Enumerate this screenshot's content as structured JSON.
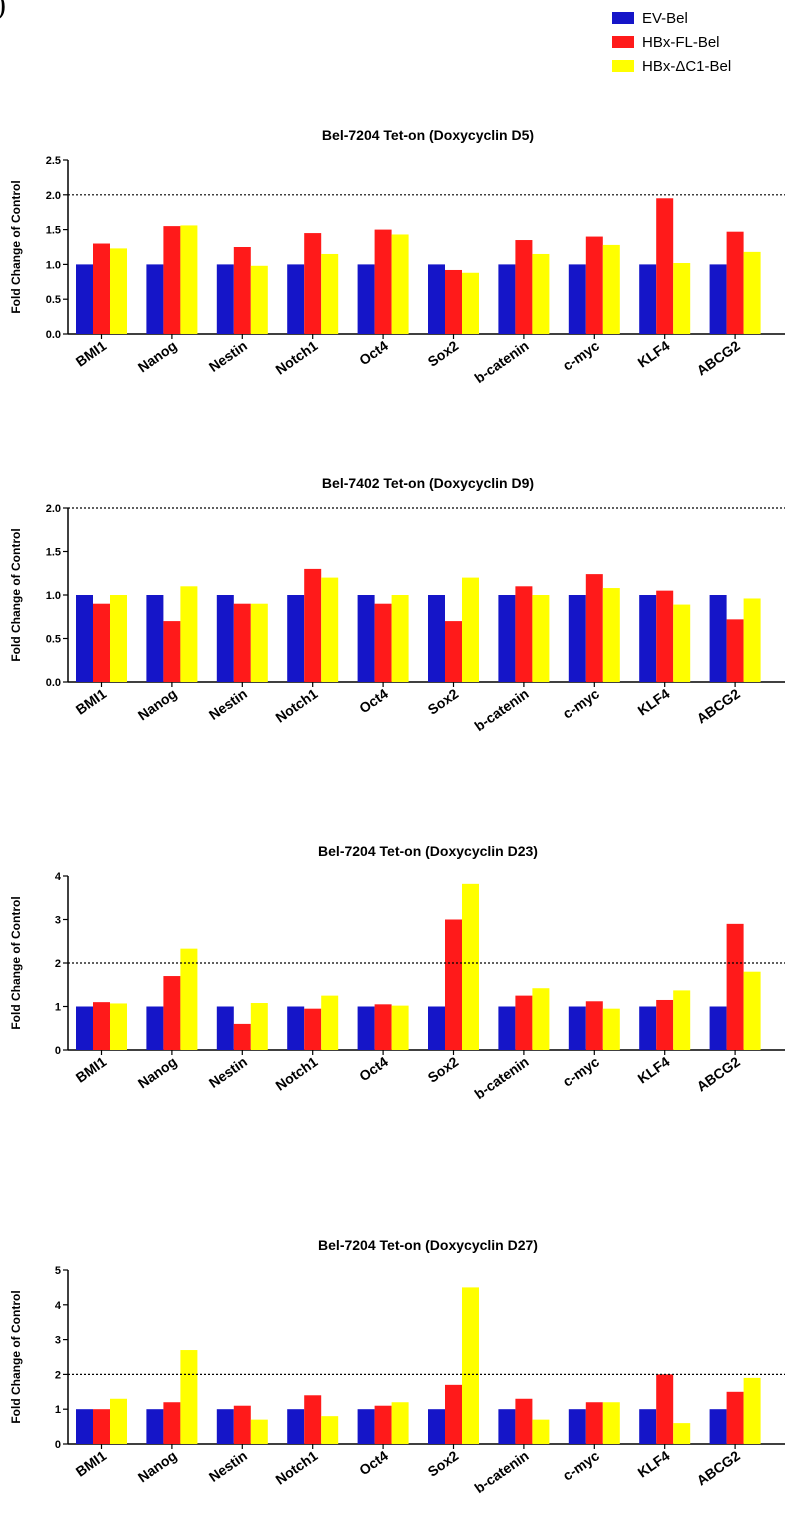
{
  "figure": {
    "corner_mark": ")"
  },
  "legend": {
    "items": [
      {
        "label": "EV-Bel",
        "color": "#1515c8"
      },
      {
        "label": "HBx-FL-Bel",
        "color": "#ff1a1a"
      },
      {
        "label": "HBx-ΔC1-Bel",
        "color": "#ffff00"
      }
    ]
  },
  "chart_data": [
    {
      "type": "bar",
      "title": "Bel-7204 Tet-on  (Doxycyclin D5)",
      "ylabel": "Fold Change of Control",
      "ylim": [
        0,
        2.5
      ],
      "yticks": [
        0.0,
        0.5,
        1.0,
        1.5,
        2.0,
        2.5
      ],
      "ytick_labels": [
        "0.0",
        "0.5",
        "1.0",
        "1.5",
        "2.0",
        "2.5"
      ],
      "reference_line": 2.0,
      "categories": [
        "BMI1",
        "Nanog",
        "Nestin",
        "Notch1",
        "Oct4",
        "Sox2",
        "b-catenin",
        "c-myc",
        "KLF4",
        "ABCG2"
      ],
      "series": [
        {
          "name": "EV-Bel",
          "color": "#1515c8",
          "values": [
            1.0,
            1.0,
            1.0,
            1.0,
            1.0,
            1.0,
            1.0,
            1.0,
            1.0,
            1.0
          ]
        },
        {
          "name": "HBx-FL-Bel",
          "color": "#ff1a1a",
          "values": [
            1.3,
            1.55,
            1.25,
            1.45,
            1.5,
            0.92,
            1.35,
            1.4,
            1.95,
            1.47
          ]
        },
        {
          "name": "HBx-ΔC1-Bel",
          "color": "#ffff00",
          "values": [
            1.23,
            1.56,
            0.98,
            1.15,
            1.43,
            0.88,
            1.15,
            1.28,
            1.02,
            1.18
          ]
        }
      ]
    },
    {
      "type": "bar",
      "title": "Bel-7402 Tet-on  (Doxycyclin D9)",
      "ylabel": "Fold Change of Control",
      "ylim": [
        0,
        2.0
      ],
      "yticks": [
        0.0,
        0.5,
        1.0,
        1.5,
        2.0
      ],
      "ytick_labels": [
        "0.0",
        "0.5",
        "1.0",
        "1.5",
        "2.0"
      ],
      "reference_line": 2.0,
      "categories": [
        "BMI1",
        "Nanog",
        "Nestin",
        "Notch1",
        "Oct4",
        "Sox2",
        "b-catenin",
        "c-myc",
        "KLF4",
        "ABCG2"
      ],
      "series": [
        {
          "name": "EV-Bel",
          "color": "#1515c8",
          "values": [
            1.0,
            1.0,
            1.0,
            1.0,
            1.0,
            1.0,
            1.0,
            1.0,
            1.0,
            1.0
          ]
        },
        {
          "name": "HBx-FL-Bel",
          "color": "#ff1a1a",
          "values": [
            0.9,
            0.7,
            0.9,
            1.3,
            0.9,
            0.7,
            1.1,
            1.24,
            1.05,
            0.72
          ]
        },
        {
          "name": "HBx-ΔC1-Bel",
          "color": "#ffff00",
          "values": [
            1.0,
            1.1,
            0.9,
            1.2,
            1.0,
            1.2,
            1.0,
            1.08,
            0.89,
            0.96
          ]
        }
      ]
    },
    {
      "type": "bar",
      "title": "Bel-7204 Tet-on  (Doxycyclin D23)",
      "ylabel": "Fold Change of Control",
      "ylim": [
        0,
        4
      ],
      "yticks": [
        0,
        1,
        2,
        3,
        4
      ],
      "ytick_labels": [
        "0",
        "1",
        "2",
        "3",
        "4"
      ],
      "reference_line": 2.0,
      "categories": [
        "BMI1",
        "Nanog",
        "Nestin",
        "Notch1",
        "Oct4",
        "Sox2",
        "b-catenin",
        "c-myc",
        "KLF4",
        "ABCG2"
      ],
      "series": [
        {
          "name": "EV-Bel",
          "color": "#1515c8",
          "values": [
            1.0,
            1.0,
            1.0,
            1.0,
            1.0,
            1.0,
            1.0,
            1.0,
            1.0,
            1.0
          ]
        },
        {
          "name": "HBx-FL-Bel",
          "color": "#ff1a1a",
          "values": [
            1.1,
            1.7,
            0.6,
            0.95,
            1.05,
            3.0,
            1.25,
            1.12,
            1.15,
            2.9
          ]
        },
        {
          "name": "HBx-ΔC1-Bel",
          "color": "#ffff00",
          "values": [
            1.07,
            2.33,
            1.08,
            1.25,
            1.02,
            3.82,
            1.42,
            0.95,
            1.37,
            1.8
          ]
        }
      ]
    },
    {
      "type": "bar",
      "title": "Bel-7204 Tet-on  (Doxycyclin D27)",
      "ylabel": "Fold Change of Control",
      "ylim": [
        0,
        5
      ],
      "yticks": [
        0,
        1,
        2,
        3,
        4,
        5
      ],
      "ytick_labels": [
        "0",
        "1",
        "2",
        "3",
        "4",
        "5"
      ],
      "reference_line": 2.0,
      "categories": [
        "BMI1",
        "Nanog",
        "Nestin",
        "Notch1",
        "Oct4",
        "Sox2",
        "b-catenin",
        "c-myc",
        "KLF4",
        "ABCG2"
      ],
      "series": [
        {
          "name": "EV-Bel",
          "color": "#1515c8",
          "values": [
            1.0,
            1.0,
            1.0,
            1.0,
            1.0,
            1.0,
            1.0,
            1.0,
            1.0,
            1.0
          ]
        },
        {
          "name": "HBx-FL-Bel",
          "color": "#ff1a1a",
          "values": [
            1.0,
            1.2,
            1.1,
            1.4,
            1.1,
            1.7,
            1.3,
            1.2,
            2.0,
            1.5
          ]
        },
        {
          "name": "HBx-ΔC1-Bel",
          "color": "#ffff00",
          "values": [
            1.3,
            2.7,
            0.7,
            0.8,
            1.2,
            4.5,
            0.7,
            1.2,
            0.6,
            1.9
          ]
        }
      ]
    }
  ]
}
